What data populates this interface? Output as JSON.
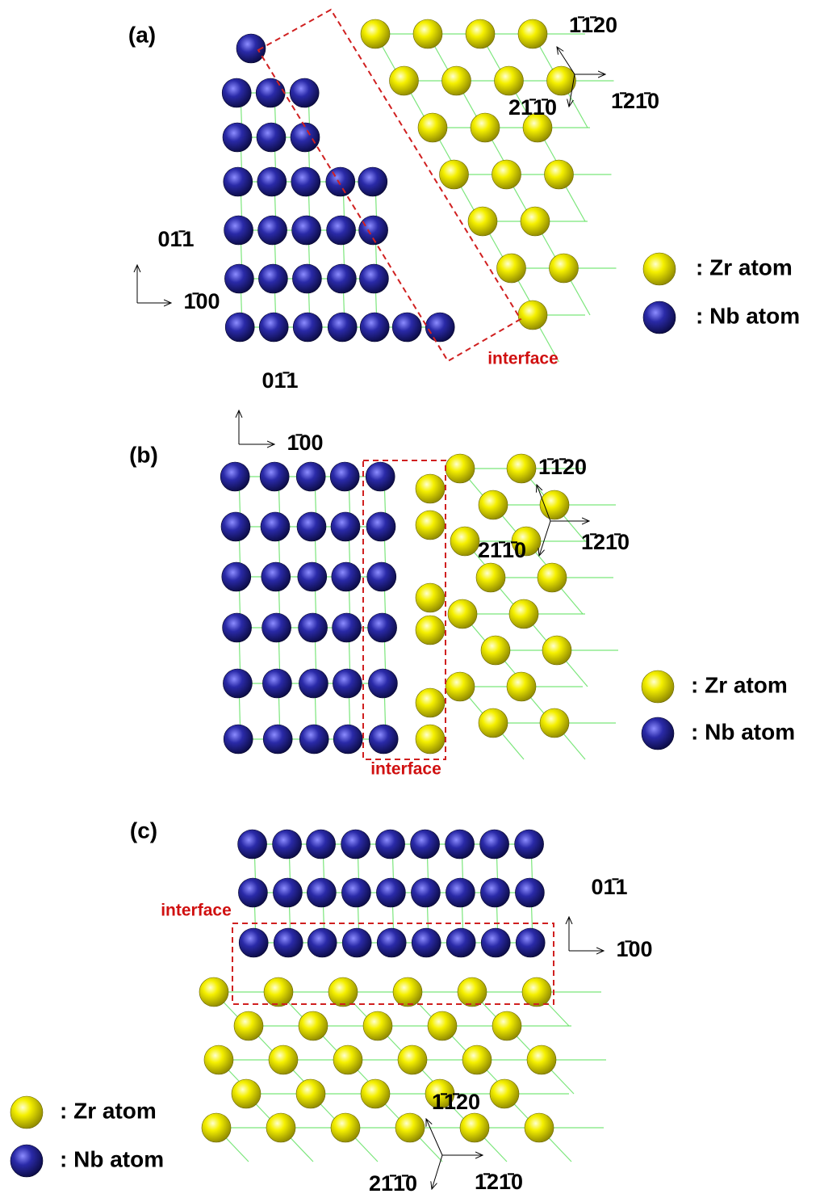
{
  "panels": [
    {
      "label": "(a)",
      "interface": "interface",
      "bcc_axes": [
        "01̄1",
        "1̄00"
      ],
      "hcp_axes": [
        "1̄1̄20",
        "1̄21̄0",
        "21̄1̄0"
      ],
      "legend": [
        ": Zr atom",
        ": Nb atom"
      ]
    },
    {
      "label": "(b)",
      "interface": "interface",
      "bcc_axes": [
        "01̄1",
        "1̄00"
      ],
      "hcp_axes": [
        "1̄1̄20",
        "1̄21̄0",
        "21̄1̄0"
      ],
      "legend": [
        ": Zr atom",
        ": Nb atom"
      ]
    },
    {
      "label": "(c)",
      "interface": "interface",
      "bcc_axes": [
        "01̄1",
        "1̄00"
      ],
      "hcp_axes": [
        "1̄1̄20",
        "1̄21̄0",
        "21̄1̄0"
      ],
      "legend": [
        ": Zr atom",
        ": Nb atom"
      ]
    }
  ]
}
